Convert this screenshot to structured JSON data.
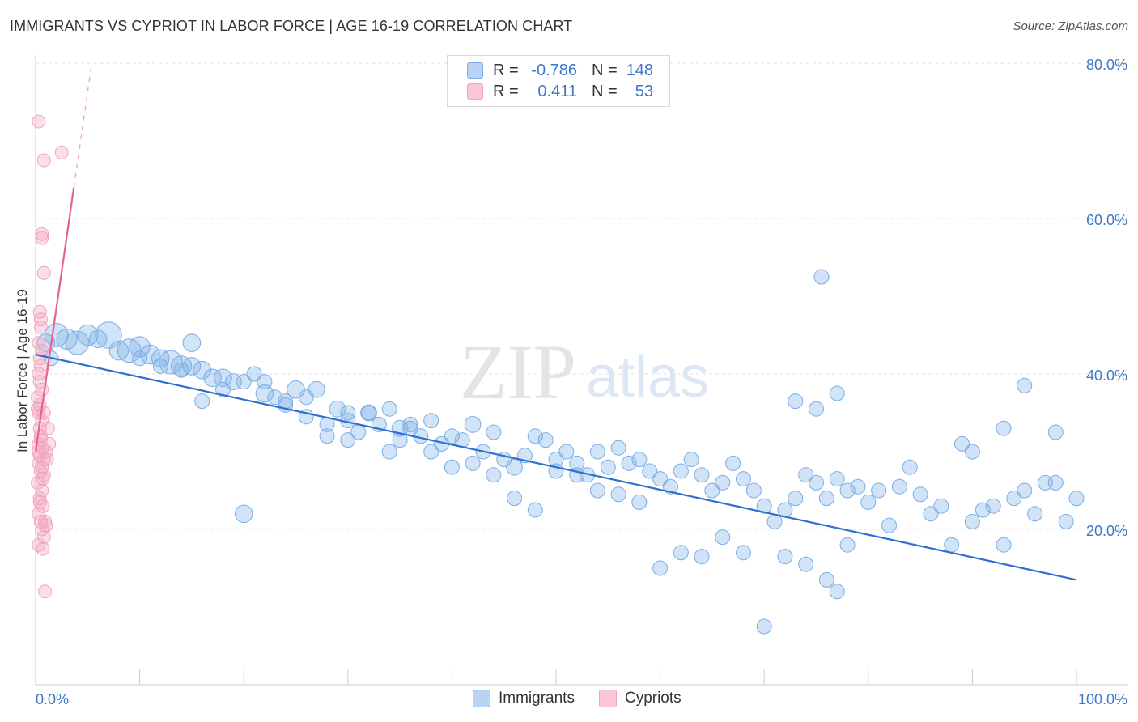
{
  "title": "IMMIGRANTS VS CYPRIOT IN LABOR FORCE | AGE 16-19 CORRELATION CHART",
  "source": "Source: ZipAtlas.com",
  "watermark": {
    "zip": "ZIP",
    "atlas": "atlas"
  },
  "legend": {
    "r_label": "R =",
    "n_label": "N =",
    "entries": [
      {
        "name": "Immigrants",
        "r": "-0.786",
        "n": "148"
      },
      {
        "name": "Cypriots",
        "r": "0.411",
        "n": "53"
      }
    ]
  },
  "chart_data": {
    "type": "scatter",
    "title": "IMMIGRANTS VS CYPRIOT IN LABOR FORCE | AGE 16-19 CORRELATION CHART",
    "xlabel": "",
    "ylabel": "In Labor Force | Age 16-19",
    "xlim": [
      0,
      100
    ],
    "ylim": [
      0,
      80
    ],
    "x_tick_labels": [
      "0.0%",
      "100.0%"
    ],
    "y_ticks": [
      20,
      40,
      60,
      80
    ],
    "y_tick_labels": [
      "20.0%",
      "40.0%",
      "60.0%",
      "80.0%"
    ],
    "colors": {
      "Immigrants": "#7aaee6",
      "Cypriots": "#f4a3bd",
      "Immigrants_line": "#2f6fcf",
      "Cypriots_line": "#e8628f"
    },
    "series": [
      {
        "name": "Immigrants",
        "trend": {
          "x": [
            0,
            100
          ],
          "y": [
            42.5,
            13.5
          ]
        },
        "points": [
          [
            1,
            44,
            1.2
          ],
          [
            1.5,
            42,
            1
          ],
          [
            2,
            45,
            1.6
          ],
          [
            3,
            44.5,
            1.4
          ],
          [
            4,
            44,
            1.6
          ],
          [
            5,
            45,
            1.4
          ],
          [
            6,
            44.5,
            1.2
          ],
          [
            7,
            45,
            1.8
          ],
          [
            8,
            43,
            1.3
          ],
          [
            9,
            43,
            1.6
          ],
          [
            10,
            43.5,
            1.4
          ],
          [
            11,
            42.5,
            1.3
          ],
          [
            12,
            42,
            1.2
          ],
          [
            13,
            41.5,
            1.6
          ],
          [
            14,
            41,
            1.4
          ],
          [
            15,
            41,
            1.2
          ],
          [
            16,
            40.5,
            1.2
          ],
          [
            17,
            39.5,
            1.2
          ],
          [
            18,
            39.5,
            1.2
          ],
          [
            19,
            39,
            1.1
          ],
          [
            20,
            39,
            1
          ],
          [
            21,
            40,
            1
          ],
          [
            22,
            37.5,
            1.2
          ],
          [
            23,
            37,
            1
          ],
          [
            24,
            36.5,
            1
          ],
          [
            25,
            38,
            1.2
          ],
          [
            26,
            34.5,
            1
          ],
          [
            27,
            38,
            1.1
          ],
          [
            28,
            33.5,
            1
          ],
          [
            29,
            35.5,
            1.1
          ],
          [
            30,
            34,
            1
          ],
          [
            31,
            32.5,
            1
          ],
          [
            32,
            35,
            1.1
          ],
          [
            33,
            33.5,
            1
          ],
          [
            34,
            35.5,
            1
          ],
          [
            35,
            33,
            1.1
          ],
          [
            36,
            33.5,
            1
          ],
          [
            37,
            32,
            1
          ],
          [
            38,
            34,
            1
          ],
          [
            39,
            31,
            1
          ],
          [
            40,
            32,
            1
          ],
          [
            41,
            31.5,
            1
          ],
          [
            42,
            33.5,
            1.1
          ],
          [
            43,
            30,
            1
          ],
          [
            44,
            32.5,
            1
          ],
          [
            45,
            29,
            1
          ],
          [
            46,
            28,
            1.1
          ],
          [
            47,
            29.5,
            1
          ],
          [
            48,
            32,
            1
          ],
          [
            49,
            31.5,
            1
          ],
          [
            50,
            27.5,
            1
          ],
          [
            51,
            30,
            1
          ],
          [
            52,
            28.5,
            1
          ],
          [
            53,
            27,
            1
          ],
          [
            54,
            30,
            1
          ],
          [
            55,
            28,
            1
          ],
          [
            56,
            30.5,
            1
          ],
          [
            57,
            28.5,
            1
          ],
          [
            58,
            29,
            1
          ],
          [
            59,
            27.5,
            1
          ],
          [
            60,
            26.5,
            1
          ],
          [
            61,
            25.5,
            1
          ],
          [
            62,
            27.5,
            1
          ],
          [
            63,
            29,
            1
          ],
          [
            64,
            27,
            1
          ],
          [
            65,
            25,
            1
          ],
          [
            66,
            26,
            1
          ],
          [
            67,
            28.5,
            1
          ],
          [
            68,
            26.5,
            1
          ],
          [
            69,
            25,
            1
          ],
          [
            70,
            23,
            1
          ],
          [
            71,
            21,
            1
          ],
          [
            72,
            22.5,
            1
          ],
          [
            73,
            24,
            1
          ],
          [
            74,
            27,
            1
          ],
          [
            75,
            26,
            1
          ],
          [
            76,
            24,
            1
          ],
          [
            77,
            26.5,
            1
          ],
          [
            78,
            25,
            1
          ],
          [
            79,
            25.5,
            1
          ],
          [
            80,
            23.5,
            1
          ],
          [
            81,
            25,
            1
          ],
          [
            82,
            20.5,
            1
          ],
          [
            83,
            25.5,
            1
          ],
          [
            84,
            28,
            1
          ],
          [
            85,
            24.5,
            1
          ],
          [
            86,
            22,
            1
          ],
          [
            87,
            23,
            1
          ],
          [
            88,
            18,
            1
          ],
          [
            89,
            31,
            1
          ],
          [
            90,
            21,
            1
          ],
          [
            91,
            22.5,
            1
          ],
          [
            92,
            23,
            1
          ],
          [
            93,
            18,
            1
          ],
          [
            94,
            24,
            1
          ],
          [
            95,
            25,
            1
          ],
          [
            96,
            22,
            1
          ],
          [
            97,
            26,
            1
          ],
          [
            98,
            32.5,
            1
          ],
          [
            99,
            21,
            1
          ],
          [
            73,
            36.5,
            1
          ],
          [
            77,
            37.5,
            1
          ],
          [
            75,
            35.5,
            1
          ],
          [
            90,
            30,
            1
          ],
          [
            93,
            33,
            1
          ],
          [
            95,
            38.5,
            1
          ],
          [
            98,
            26,
            1
          ],
          [
            100,
            24,
            1
          ],
          [
            75.5,
            52.5,
            1
          ],
          [
            77,
            12,
            1
          ],
          [
            60,
            15,
            1
          ],
          [
            62,
            17,
            1
          ],
          [
            64,
            16.5,
            1
          ],
          [
            66,
            19,
            1
          ],
          [
            68,
            17,
            1
          ],
          [
            70,
            7.5,
            1
          ],
          [
            72,
            16.5,
            1
          ],
          [
            74,
            15.5,
            1
          ],
          [
            76,
            13.5,
            1
          ],
          [
            78,
            18,
            1
          ],
          [
            28,
            32,
            1
          ],
          [
            30,
            31.5,
            1
          ],
          [
            32,
            35,
            1
          ],
          [
            34,
            30,
            1
          ],
          [
            36,
            33,
            1
          ],
          [
            38,
            30,
            1
          ],
          [
            40,
            28,
            1
          ],
          [
            42,
            28.5,
            1
          ],
          [
            44,
            27,
            1
          ],
          [
            46,
            24,
            1
          ],
          [
            20,
            22,
            1.2
          ],
          [
            48,
            22.5,
            1
          ],
          [
            50,
            29,
            1
          ],
          [
            52,
            27,
            1
          ],
          [
            54,
            25,
            1
          ],
          [
            56,
            24.5,
            1
          ],
          [
            58,
            23.5,
            1
          ],
          [
            15,
            44,
            1.2
          ],
          [
            16,
            36.5,
            1
          ],
          [
            18,
            38,
            1
          ],
          [
            22,
            39,
            1
          ],
          [
            24,
            36,
            1
          ],
          [
            26,
            37,
            1
          ],
          [
            10,
            42,
            1
          ],
          [
            12,
            41,
            1
          ],
          [
            14,
            40.5,
            1
          ],
          [
            30,
            35,
            1
          ],
          [
            35,
            31.5,
            1
          ]
        ]
      },
      {
        "name": "Cypriots",
        "trend": {
          "x": [
            0,
            5.4
          ],
          "y": [
            30,
            80
          ]
        },
        "points": [
          [
            0.3,
            72.5
          ],
          [
            0.8,
            67.5
          ],
          [
            2.5,
            68.5
          ],
          [
            0.6,
            58
          ],
          [
            0.6,
            57.5
          ],
          [
            0.8,
            53
          ],
          [
            0.4,
            48
          ],
          [
            0.5,
            46
          ],
          [
            0.3,
            44
          ],
          [
            0.4,
            42
          ],
          [
            0.5,
            41
          ],
          [
            0.3,
            40
          ],
          [
            0.6,
            38
          ],
          [
            0.2,
            37
          ],
          [
            0.4,
            36
          ],
          [
            0.3,
            35
          ],
          [
            0.6,
            34
          ],
          [
            0.4,
            33
          ],
          [
            1.2,
            33
          ],
          [
            0.5,
            32
          ],
          [
            0.3,
            31
          ],
          [
            0.6,
            30.5
          ],
          [
            1.0,
            30
          ],
          [
            0.4,
            29.5
          ],
          [
            0.8,
            29
          ],
          [
            0.3,
            28.5
          ],
          [
            0.6,
            28
          ],
          [
            0.5,
            27.5
          ],
          [
            0.8,
            27
          ],
          [
            1.1,
            29
          ],
          [
            0.2,
            26
          ],
          [
            0.6,
            25
          ],
          [
            0.4,
            24
          ],
          [
            0.7,
            23
          ],
          [
            0.3,
            22
          ],
          [
            0.5,
            21
          ],
          [
            1.0,
            20.5
          ],
          [
            0.6,
            20
          ],
          [
            0.8,
            19
          ],
          [
            0.3,
            18
          ],
          [
            0.7,
            17.5
          ],
          [
            0.9,
            12
          ],
          [
            0.4,
            39
          ],
          [
            0.6,
            43
          ],
          [
            0.2,
            35.5
          ],
          [
            0.5,
            31.5
          ],
          [
            0.7,
            26.5
          ],
          [
            0.4,
            23.5
          ],
          [
            0.9,
            21
          ],
          [
            1.3,
            31
          ],
          [
            0.3,
            30
          ],
          [
            0.8,
            35
          ],
          [
            0.5,
            47
          ]
        ]
      }
    ]
  }
}
